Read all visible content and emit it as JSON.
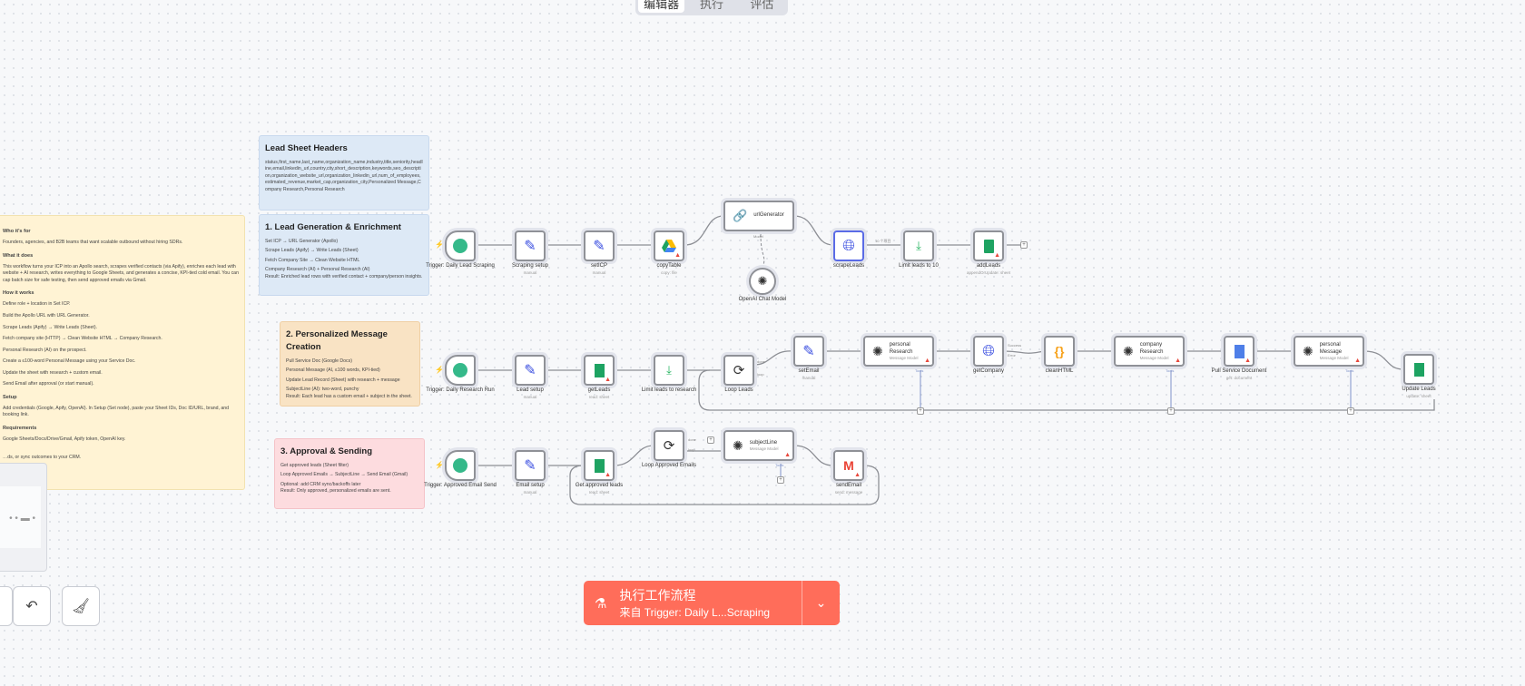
{
  "tabs": [
    {
      "label": "编辑器",
      "active": true
    },
    {
      "label": "执行"
    },
    {
      "label": "评估"
    }
  ],
  "stickies": {
    "overview": {
      "h1": "Who it's for",
      "p1": "Founders, agencies, and B2B teams that want scalable outbound without hiring SDRs.",
      "h2": "What it does",
      "p2": "This workflow turns your ICP into an Apollo search, scrapes verified contacts (via Apify), enriches each lead with website + AI research, writes everything to Google Sheets, and generates a concise, KPI-tied cold email. You can cap batch size for safe testing, then send approved emails via Gmail.",
      "h3": "How it works",
      "steps": [
        "Define role + location in Set ICP.",
        "Build the Apollo URL with URL Generator.",
        "Scrape Leads (Apify) → Write Leads (Sheet).",
        "Fetch company site (HTTP) → Clean Website HTML → Company Research.",
        "Personal Research (AI) on the prospect.",
        "Create a ≤100-word Personal Message using your Service Doc.",
        "Update the sheet with research + custom email.",
        "Send Email after approval (or start manual)."
      ],
      "h4": "Setup",
      "p4": "Add credentials (Google, Apify, OpenAI). In Setup (Set node), paste your Sheet IDs, Doc ID/URL, brand, and booking link.",
      "h5": "Requirements",
      "p5": "Google Sheets/Docs/Drive/Gmail, Apify token, OpenAI key.",
      "p6": "…ds, or sync outcomes to your CRM."
    },
    "headers": {
      "title": "Lead Sheet Headers",
      "body": "status,first_name,last_name,organization_name,industry,title,seniority,headline,email,linkedin_url,country,city,short_description,keywords,seo_description,organization_website_url,organization_linkedin_url,num_of_employees,estimated_revenue,market_cap,organization_city,Personalized Message,Company Research,Personal Research"
    },
    "s1": {
      "title": "1. Lead Generation & Enrichment",
      "lines": [
        "Set ICP → URL Generator (Apollo)",
        "Scrape Leads (Apify) → Write Leads (Sheet)",
        "Fetch Company Site → Clean Website HTML",
        "Company Research (AI) + Personal Research (AI)",
        "Result: Enriched lead rows with verified contact + company/person insights."
      ]
    },
    "s2": {
      "title": "2. Personalized Message Creation",
      "lines": [
        "Pull Service Doc (Google Docs)",
        "Personal Message (AI, ≤100 words, KPI-tied)",
        "Update Lead Record (Sheet) with research + message",
        "SubjectLine (AI): two-word, punchy",
        "Result: Each lead has a custom email + subject in the sheet."
      ]
    },
    "s3": {
      "title": "3. Approval & Sending",
      "lines": [
        "Get approved leads (Sheet filter)",
        "Loop Approved Emails → SubjectLine → Send Email (Gmail)",
        "Optional: add CRM sync/backoffs later",
        "Result: Only approved, personalized emails are sent."
      ]
    }
  },
  "nodes": {
    "t1": {
      "label": "Trigger: Daily Lead Scraping",
      "icon": "clock-icon"
    },
    "scrapingSetup": {
      "label": "Scraping setup",
      "sub": "manual"
    },
    "setICP": {
      "label": "setICP",
      "sub": "manual"
    },
    "copyTable": {
      "label": "copyTable",
      "sub": "copy: file"
    },
    "urlGenerator": {
      "label": "urlGenerator",
      "port": "Model"
    },
    "openai": {
      "label": "OpenAI Chat Model"
    },
    "scrapeLeads": {
      "label": "scrapeLeads"
    },
    "edge10": "10 个项目",
    "limit10": {
      "label": "Limit leads to 10"
    },
    "addLeads": {
      "label": "addLeads",
      "sub": "appendOrUpdate: sheet"
    },
    "t2": {
      "label": "Trigger: Daily Research Run"
    },
    "leadSetup": {
      "label": "Lead setup",
      "sub": "manual"
    },
    "getLeads": {
      "label": "getLeads",
      "sub": "read: sheet"
    },
    "limitResearch": {
      "label": "Limit leads to research"
    },
    "loopLeads": {
      "label": "Loop Leads",
      "done": "done",
      "loop": "loop"
    },
    "setEmail": {
      "label": "setEmail",
      "sub": "manual"
    },
    "personalResearch": {
      "label": "personal Research",
      "sub": "Message Model",
      "port": "Tools"
    },
    "getCompany": {
      "label": "getCompany",
      "success": "Success",
      "error": "Error"
    },
    "cleanHTML": {
      "label": "cleanHTML"
    },
    "companyResearch": {
      "label": "company Research",
      "sub": "Message Model",
      "port": "Tools"
    },
    "pullDoc": {
      "label": "Pull Service Document",
      "sub": "get: document"
    },
    "personalMessage": {
      "label": "personal Message",
      "sub": "Message Model",
      "port": "Tools"
    },
    "updateLeads": {
      "label": "Update Leads",
      "sub": "update: sheet"
    },
    "t3": {
      "label": "Trigger: Approved Email Send"
    },
    "emailSetup": {
      "label": "Email setup",
      "sub": "manual"
    },
    "getApproved": {
      "label": "Get approved leads",
      "sub": "read: sheet"
    },
    "loopApproved": {
      "label": "Loop Approved Emails",
      "done": "done",
      "loop": "loop"
    },
    "subjectLine": {
      "label": "subjectLine",
      "sub": "Message Model",
      "port": "Tools"
    },
    "sendEmail": {
      "label": "sendEmail",
      "sub": "send: message"
    }
  },
  "run": {
    "title": "执行工作流程",
    "subtitle": "来自 Trigger: Daily L...Scraping"
  },
  "colors": {
    "accent": "#ff6d5a",
    "warning": "#e8483c"
  }
}
